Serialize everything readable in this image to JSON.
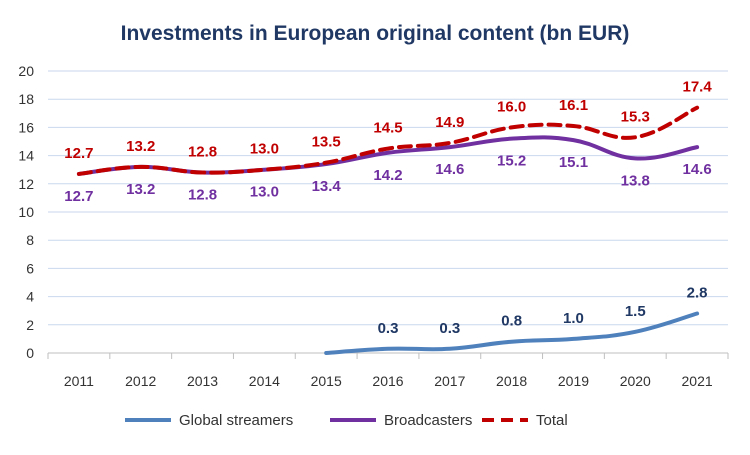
{
  "chart_data": {
    "type": "line",
    "title": "Investments in European original content (bn EUR)",
    "xlabel": "",
    "ylabel": "",
    "ylim": [
      0,
      20
    ],
    "yticks": [
      0,
      2,
      4,
      6,
      8,
      10,
      12,
      14,
      16,
      18,
      20
    ],
    "grid": true,
    "legend": "bottom",
    "categories": [
      "2011",
      "2012",
      "2013",
      "2014",
      "2015",
      "2016",
      "2017",
      "2018",
      "2019",
      "2020",
      "2021"
    ],
    "series": [
      {
        "name": "Global streamers",
        "color": "#4f81bd",
        "dash": false,
        "label_color": "#1f3864",
        "label_pos": "above",
        "values": [
          null,
          null,
          null,
          null,
          0,
          0.3,
          0.3,
          0.8,
          1.0,
          1.5,
          2.8
        ],
        "labels": [
          null,
          null,
          null,
          null,
          null,
          "0.3",
          "0.3",
          "0.8",
          "1.0",
          "1.5",
          "2.8"
        ]
      },
      {
        "name": "Broadcasters",
        "color": "#7030a0",
        "dash": false,
        "label_color": "#7030a0",
        "label_pos": "below",
        "values": [
          12.7,
          13.2,
          12.8,
          13.0,
          13.4,
          14.2,
          14.6,
          15.2,
          15.1,
          13.8,
          14.6
        ],
        "labels": [
          "12.7",
          "13.2",
          "12.8",
          "13.0",
          "13.4",
          "14.2",
          "14.6",
          "15.2",
          "15.1",
          "13.8",
          "14.6"
        ]
      },
      {
        "name": "Total",
        "color": "#c00000",
        "dash": true,
        "label_color": "#c00000",
        "label_pos": "above",
        "values": [
          12.7,
          13.2,
          12.8,
          13.0,
          13.5,
          14.5,
          14.9,
          16.0,
          16.1,
          15.3,
          17.4
        ],
        "labels": [
          "12.7",
          "13.2",
          "12.8",
          "13.0",
          "13.5",
          "14.5",
          "14.9",
          "16.0",
          "16.1",
          "15.3",
          "17.4"
        ]
      }
    ],
    "colors": {
      "title": "#1f3864",
      "grid": "#c9d7ee",
      "axis_text": "#333333"
    }
  }
}
